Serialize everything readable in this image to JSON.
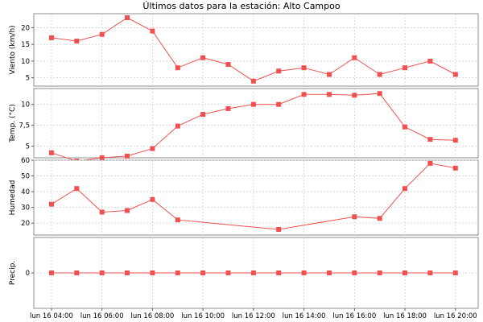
{
  "chart_data": {
    "type": "line",
    "title": "Últimos datos para la estación: Alto Campoo",
    "series_color": "#f05050",
    "x_hours": [
      4,
      5,
      6,
      7,
      8,
      9,
      10,
      11,
      12,
      13,
      14,
      15,
      16,
      17,
      18,
      19,
      20
    ],
    "x_range_hours": [
      3.3,
      20.9
    ],
    "x_tick_hours": [
      4,
      6,
      8,
      10,
      12,
      14,
      16,
      18,
      20
    ],
    "x_tick_labels": [
      "lun 16 04:00",
      "lun 16 06:00",
      "lun 16 08:00",
      "lun 16 10:00",
      "lun 16 12:00",
      "lun 16 14:00",
      "lun 16 16:00",
      "lun 16 18:00",
      "lun 16 20:00"
    ],
    "panels": [
      {
        "ylabel": "Viento (km/h)",
        "ylim": [
          2.5,
          24.2
        ],
        "yticks": [
          5,
          10,
          15,
          20
        ],
        "ytick_labels": [
          "5",
          "10",
          "15",
          "20"
        ],
        "points": [
          [
            4,
            17
          ],
          [
            5,
            16
          ],
          [
            6,
            18
          ],
          [
            7,
            23
          ],
          [
            8,
            19
          ],
          [
            9,
            8
          ],
          [
            10,
            11
          ],
          [
            11,
            9
          ],
          [
            12,
            4
          ],
          [
            13,
            7
          ],
          [
            14,
            8
          ],
          [
            15,
            6
          ],
          [
            16,
            11
          ],
          [
            17,
            6
          ],
          [
            18,
            8
          ],
          [
            19,
            10
          ],
          [
            20,
            6
          ]
        ]
      },
      {
        "ylabel": "Temp. (°C)",
        "ylim": [
          3.6,
          11.9
        ],
        "yticks": [
          5,
          7.5,
          10
        ],
        "ytick_labels": [
          "5",
          "7,5",
          "10"
        ],
        "points": [
          [
            4,
            4.2
          ],
          [
            5,
            3.2
          ],
          [
            6,
            3.6
          ],
          [
            7,
            3.8
          ],
          [
            8,
            4.7
          ],
          [
            9,
            7.4
          ],
          [
            10,
            8.8
          ],
          [
            11,
            9.5
          ],
          [
            12,
            10.0
          ],
          [
            13,
            10.0
          ],
          [
            14,
            11.2
          ],
          [
            15,
            11.2
          ],
          [
            16,
            11.1
          ],
          [
            17,
            11.3
          ],
          [
            18,
            7.3
          ],
          [
            19,
            5.8
          ],
          [
            20,
            5.7
          ]
        ]
      },
      {
        "ylabel": "Humedad",
        "ylim": [
          12.4,
          60
        ],
        "yticks": [
          20,
          30,
          40,
          50,
          60
        ],
        "ytick_labels": [
          "20",
          "30",
          "40",
          "50",
          "60"
        ],
        "points": [
          [
            4,
            32
          ],
          [
            5,
            42
          ],
          [
            6,
            27
          ],
          [
            7,
            28
          ],
          [
            8,
            35
          ],
          [
            9,
            22
          ],
          [
            13,
            16
          ],
          [
            16,
            24
          ],
          [
            17,
            23
          ],
          [
            18,
            42
          ],
          [
            19,
            58
          ],
          [
            20,
            55
          ]
        ]
      },
      {
        "ylabel": "Precip.",
        "ylim": [
          -1,
          1
        ],
        "yticks": [
          0
        ],
        "ytick_labels": [
          "0"
        ],
        "points": [
          [
            4,
            0
          ],
          [
            5,
            0
          ],
          [
            6,
            0
          ],
          [
            7,
            0
          ],
          [
            8,
            0
          ],
          [
            9,
            0
          ],
          [
            10,
            0
          ],
          [
            11,
            0
          ],
          [
            12,
            0
          ],
          [
            13,
            0
          ],
          [
            14,
            0
          ],
          [
            15,
            0
          ],
          [
            16,
            0
          ],
          [
            17,
            0
          ],
          [
            18,
            0
          ],
          [
            19,
            0
          ],
          [
            20,
            0
          ]
        ]
      }
    ]
  }
}
